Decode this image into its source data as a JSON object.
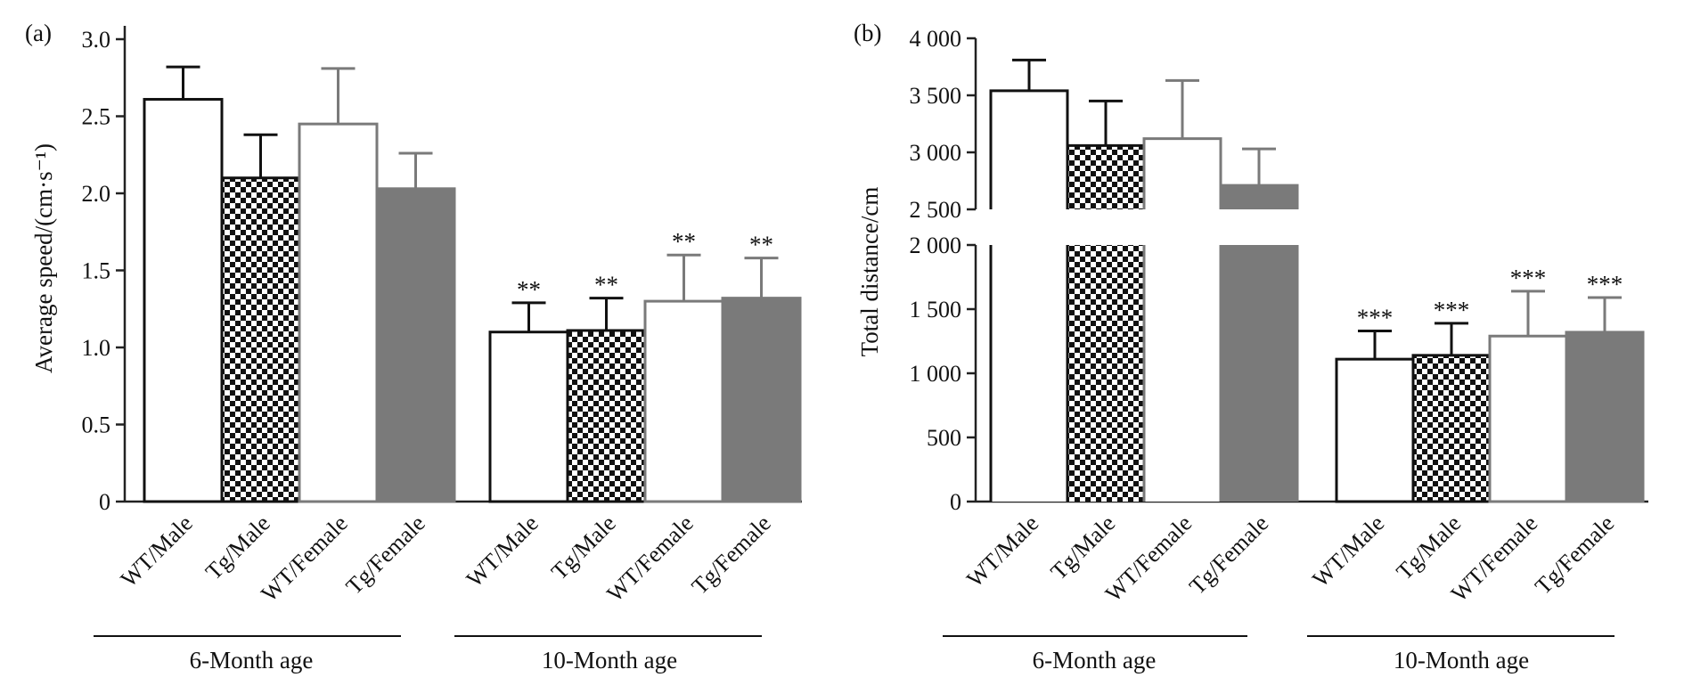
{
  "colors": {
    "axis": "#222222",
    "wt_male_edge": "#111111",
    "female_gray": "#7a7a7a",
    "checker_dark": "#111111",
    "checker_light": "#ffffff",
    "background": "#ffffff"
  },
  "chart_data": [
    {
      "panel": "(a)",
      "type": "bar",
      "ylabel": "Average speed/(cm·s⁻¹)",
      "ylim": [
        0,
        3.0
      ],
      "yticks": [
        "0",
        "0.5",
        "1.0",
        "1.5",
        "2.0",
        "2.5",
        "3.0"
      ],
      "ytick_values": [
        0,
        0.5,
        1.0,
        1.5,
        2.0,
        2.5,
        3.0
      ],
      "broken_axis": false,
      "groups": [
        {
          "label": "6-Month age",
          "categories": [
            "WT/Male",
            "Tg/Male",
            "WT/Female",
            "Tg/Female"
          ],
          "values": [
            2.61,
            2.1,
            2.45,
            2.03
          ],
          "errors": [
            0.21,
            0.28,
            0.36,
            0.23
          ],
          "significance": [
            "",
            "",
            "",
            ""
          ]
        },
        {
          "label": "10-Month age",
          "categories": [
            "WT/Male",
            "Tg/Male",
            "WT/Female",
            "Tg/Female"
          ],
          "values": [
            1.1,
            1.11,
            1.3,
            1.32
          ],
          "errors": [
            0.19,
            0.21,
            0.3,
            0.26
          ],
          "significance": [
            "**",
            "**",
            "**",
            "**"
          ]
        }
      ],
      "bar_styles": [
        "white fill, black outline",
        "black/white checkered",
        "white fill, gray outline",
        "solid gray"
      ],
      "grid": false
    },
    {
      "panel": "(b)",
      "type": "bar",
      "ylabel": "Total distance/cm",
      "ylim": [
        0,
        4000
      ],
      "yticks": [
        "0",
        "500",
        "1 000",
        "1 500",
        "2 000",
        "2 500",
        "3 000",
        "3 500",
        "4 000"
      ],
      "ytick_values": [
        0,
        500,
        1000,
        1500,
        2000,
        2500,
        3000,
        3500,
        4000
      ],
      "broken_axis": true,
      "axis_break": [
        2000,
        2500
      ],
      "groups": [
        {
          "label": "6-Month age",
          "categories": [
            "WT/Male",
            "Tg/Male",
            "WT/Female",
            "Tg/Female"
          ],
          "values": [
            3540,
            3060,
            3120,
            2710
          ],
          "errors": [
            270,
            390,
            510,
            320
          ],
          "significance": [
            "",
            "",
            "",
            ""
          ]
        },
        {
          "label": "10-Month age",
          "categories": [
            "WT/Male",
            "Tg/Male",
            "WT/Female",
            "Tg/Female"
          ],
          "values": [
            1110,
            1140,
            1290,
            1320
          ],
          "errors": [
            220,
            250,
            350,
            270
          ],
          "significance": [
            "***",
            "***",
            "***",
            "***"
          ]
        }
      ],
      "bar_styles": [
        "white fill, black outline",
        "black/white checkered",
        "white fill, gray outline",
        "solid gray"
      ],
      "grid": false
    }
  ]
}
